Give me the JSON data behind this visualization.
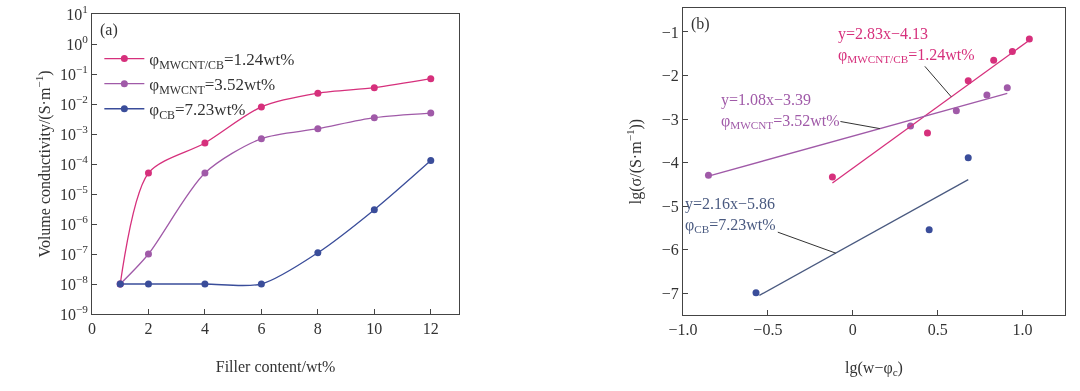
{
  "chart_data": [
    {
      "type": "line",
      "xlabel": "Filler content/wt%",
      "ylabel": "Volume conductivity/(S·m$^{−1}$)",
      "log": "y",
      "marker": "circle",
      "legend": "top left",
      "xlim": [
        0,
        13
      ],
      "xticks": [
        0,
        2,
        4,
        6,
        8,
        10,
        12
      ],
      "ylim": [
        1e-09,
        10
      ],
      "yticks": [
        {
          "value": 1e-09,
          "label": "10$^{−9}$"
        },
        {
          "value": 1e-08,
          "label": "10$^{−8}$"
        },
        {
          "value": 1e-07,
          "label": "10$^{−7}$"
        },
        {
          "value": 1e-06,
          "label": "10$^{−6}$"
        },
        {
          "value": 1e-05,
          "label": "10$^{−5}$"
        },
        {
          "value": 0.0001,
          "label": "10$^{−4}$"
        },
        {
          "value": 0.001,
          "label": "10$^{−3}$"
        },
        {
          "value": 0.01,
          "label": "10$^{−2}$"
        },
        {
          "value": 0.1,
          "label": "10$^{−1}$"
        },
        {
          "value": 1,
          "label": "10$^{0}$"
        },
        {
          "value": 10,
          "label": "10$^{1}$"
        }
      ],
      "x": [
        1,
        2,
        4,
        6,
        8,
        10,
        12
      ],
      "series": [
        {
          "name": "φ$_{MWCNT/CB}$=1.24wt%",
          "color": "#d6307c",
          "values": [
            1e-08,
            5e-05,
            0.0005,
            0.008,
            0.023,
            0.035,
            0.07
          ]
        },
        {
          "name": "φ$_{MWCNT}$=3.52wt%",
          "color": "#a05aa8",
          "values": [
            1e-08,
            1e-07,
            5e-05,
            0.0007,
            0.0015,
            0.0035,
            0.005
          ]
        },
        {
          "name": "φ$_{CB}$=7.23wt%",
          "color": "#3a4d9a",
          "values": [
            1e-08,
            1e-08,
            1e-08,
            1e-08,
            1.1e-07,
            3e-06,
            0.00013
          ]
        }
      ],
      "annotations": [
        "(a)"
      ]
    },
    {
      "type": "scatter",
      "xlabel": "lg(w−φ$_{c}$)",
      "ylabel": "lg(σ/(S·m$^{−1}$))",
      "marker": "circle",
      "xlim": [
        -1.0,
        1.25
      ],
      "xticks": [
        {
          "value": -1,
          "label": "−1.0"
        },
        {
          "value": -0.5,
          "label": "−0.5"
        },
        0,
        {
          "value": 0.5,
          "label": "0.5"
        },
        {
          "value": 1,
          "label": "1.0"
        }
      ],
      "ylim": [
        -7.5,
        -0.45
      ],
      "yticks": [
        {
          "value": -7,
          "label": "−7"
        },
        {
          "value": -6,
          "label": "−6"
        },
        {
          "value": -5,
          "label": "−5"
        },
        {
          "value": -4,
          "label": "−4"
        },
        {
          "value": -3,
          "label": "−3"
        },
        {
          "value": -2,
          "label": "−2"
        },
        {
          "value": -1,
          "label": "−1"
        }
      ],
      "series": [
        {
          "color": "#d6307c",
          "x": [
            -0.12,
            0.44,
            0.68,
            0.83,
            0.94,
            1.04
          ],
          "values": [
            -4.33,
            -3.32,
            -2.12,
            -1.65,
            -1.45,
            -1.16
          ]
        },
        {
          "color": "#a05aa8",
          "x": [
            -0.85,
            0.34,
            0.61,
            0.79,
            0.91
          ],
          "values": [
            -4.29,
            -3.16,
            -2.81,
            -2.45,
            -2.28
          ]
        },
        {
          "color": "#3a4d9a",
          "x": [
            -0.57,
            0.45,
            0.68
          ],
          "values": [
            -6.99,
            -5.54,
            -3.89
          ]
        },
        {
          "type": "line",
          "marker": "none",
          "color": "#d6307c",
          "x": [
            -0.12,
            1.04
          ],
          "values": [
            -4.47,
            -1.19
          ]
        },
        {
          "type": "line",
          "marker": "none",
          "color": "#a05aa8",
          "x": [
            -0.85,
            0.91
          ],
          "values": [
            -4.31,
            -2.41
          ]
        },
        {
          "type": "line",
          "marker": "none",
          "color": "#4a5a80",
          "x": [
            -0.55,
            0.68
          ],
          "values": [
            -7.05,
            -4.39
          ]
        }
      ],
      "annotations": [
        "(b)",
        {
          "text": "y=2.83x−4.13\nφ$_{MWCNT/CB}$=1.24wt%",
          "x": 0.58,
          "y": -2.49
        },
        {
          "text": "y=1.08x−3.39\nφ$_{MWCNT}$=3.52wt%",
          "x": 0.16,
          "y": -3.22
        },
        {
          "text": "y=2.16x−5.86\nφ$_{CB}$=7.23wt%",
          "x": -0.1,
          "y": -6.08
        }
      ]
    }
  ]
}
